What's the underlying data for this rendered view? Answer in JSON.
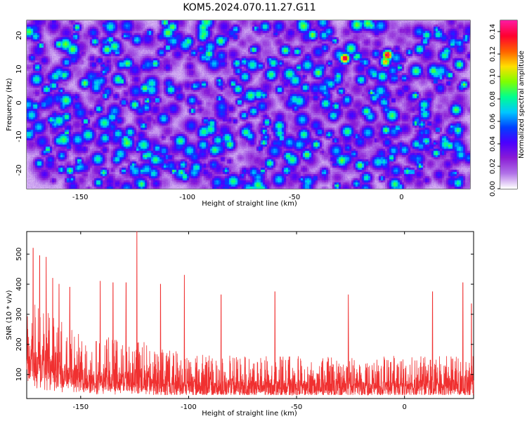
{
  "title": "KOM5.2024.070.11.27.G11",
  "chart_data": [
    {
      "type": "heatmap",
      "xlabel": "Height of straight line (km)",
      "ylabel": "Frequency (Hz)",
      "xlim": [
        -175,
        32
      ],
      "ylim": [
        -25.5,
        24.5
      ],
      "xticks": [
        -150,
        -100,
        -50,
        0
      ],
      "yticks": [
        -20,
        -10,
        0,
        10,
        20
      ],
      "colorbar": {
        "label": "Normalized spectral amplitude",
        "range": [
          0,
          0.15
        ],
        "ticks": [
          "0.00",
          "0.02",
          "0.04",
          "0.06",
          "0.08",
          "0.10",
          "0.12",
          "0.14"
        ],
        "colormap": [
          "#ffffff",
          "#b070e8",
          "#8a1cd6",
          "#4b00ff",
          "#0040ff",
          "#00c8ff",
          "#00ff90",
          "#80ff00",
          "#ffe000",
          "#ff6000",
          "#ff0030",
          "#ff1aa0"
        ]
      },
      "hotspots": [
        {
          "x": -27,
          "y": 13.5,
          "value": 0.14
        },
        {
          "x": -7,
          "y": 14.5,
          "value": 0.14
        },
        {
          "x": -8,
          "y": 12.5,
          "value": 0.11
        },
        {
          "x": -42,
          "y": 20.5,
          "value": 0.09
        },
        {
          "x": -100,
          "y": 18.5,
          "value": 0.08
        }
      ]
    },
    {
      "type": "line",
      "xlabel": "Height of straight line (km)",
      "ylabel": "SNR (10 * v/v)",
      "xlim": [
        -175,
        32
      ],
      "ylim": [
        20,
        575
      ],
      "xticks": [
        -150,
        -100,
        -50,
        0
      ],
      "yticks": [
        100,
        200,
        300,
        400,
        500
      ],
      "color": "#f03030",
      "peaks": [
        {
          "x": -172,
          "y": 520
        },
        {
          "x": -169,
          "y": 495
        },
        {
          "x": -166,
          "y": 490
        },
        {
          "x": -163,
          "y": 420
        },
        {
          "x": -160,
          "y": 400
        },
        {
          "x": -155,
          "y": 390
        },
        {
          "x": -141,
          "y": 410
        },
        {
          "x": -135,
          "y": 405
        },
        {
          "x": -129,
          "y": 405
        },
        {
          "x": -124,
          "y": 575
        },
        {
          "x": -113,
          "y": 400
        },
        {
          "x": -102,
          "y": 430
        },
        {
          "x": -85,
          "y": 365
        },
        {
          "x": -60,
          "y": 375
        },
        {
          "x": -26,
          "y": 365
        },
        {
          "x": 13,
          "y": 375
        },
        {
          "x": 27,
          "y": 405
        },
        {
          "x": 31,
          "y": 335
        }
      ]
    }
  ]
}
